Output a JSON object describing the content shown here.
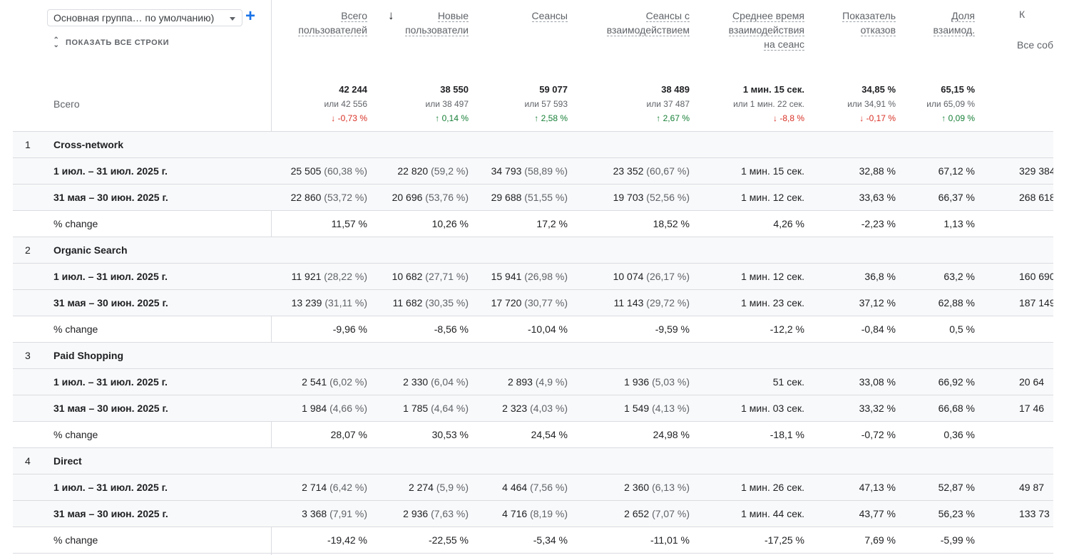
{
  "controls": {
    "dimension_select": "Основная группа… по умолчанию)",
    "add": "+",
    "show_all_rows": "ПОКАЗАТЬ ВСЕ СТРОКИ"
  },
  "columns": [
    {
      "line1": "Всего",
      "line2": "пользователей"
    },
    {
      "line1": "Новые",
      "line2": "пользователи"
    },
    {
      "line1": "Сеансы",
      "line2": ""
    },
    {
      "line1": "Сеансы с",
      "line2": "взаимодействием"
    },
    {
      "line1": "Среднее время",
      "line2": "взаимодействия",
      "line3": "на сеанс"
    },
    {
      "line1": "Показатель",
      "line2": "отказов"
    },
    {
      "line1": "Доля",
      "line2": "взаимод."
    }
  ],
  "tail_column": {
    "header": "К",
    "sub": "Все соб"
  },
  "totals": {
    "label": "Всего",
    "values": [
      {
        "main": "42 244",
        "compare": "или 42 556",
        "delta": "↓ -0,73 %",
        "dir": "down"
      },
      {
        "main": "38 550",
        "compare": "или 38 497",
        "delta": "↑ 0,14 %",
        "dir": "up"
      },
      {
        "main": "59 077",
        "compare": "или 57 593",
        "delta": "↑ 2,58 %",
        "dir": "up"
      },
      {
        "main": "38 489",
        "compare": "или 37 487",
        "delta": "↑ 2,67 %",
        "dir": "up"
      },
      {
        "main": "1 мин. 15 сек.",
        "compare": "или 1 мин. 22 сек.",
        "delta": "↓ -8,8 %",
        "dir": "down"
      },
      {
        "main": "34,85 %",
        "compare": "или 34,91 %",
        "delta": "↓ -0,17 %",
        "dir": "down"
      },
      {
        "main": "65,15 %",
        "compare": "или 65,09 %",
        "delta": "↑ 0,09 %",
        "dir": "up"
      }
    ]
  },
  "groups": [
    {
      "index": "1",
      "name": "Cross-network",
      "rows": [
        {
          "label": "1 июл. – 31 июл. 2025 г.",
          "cells": [
            [
              "25 505",
              "(60,38 %)"
            ],
            [
              "22 820",
              "(59,2 %)"
            ],
            [
              "34 793",
              "(58,89 %)"
            ],
            [
              "23 352",
              "(60,67 %)"
            ],
            [
              "1 мин. 15 сек.",
              ""
            ],
            [
              "32,88 %",
              ""
            ],
            [
              "67,12 %",
              ""
            ]
          ],
          "tail": "329 384"
        },
        {
          "label": "31 мая – 30 июн. 2025 г.",
          "cells": [
            [
              "22 860",
              "(53,72 %)"
            ],
            [
              "20 696",
              "(53,76 %)"
            ],
            [
              "29 688",
              "(51,55 %)"
            ],
            [
              "19 703",
              "(52,56 %)"
            ],
            [
              "1 мин. 12 сек.",
              ""
            ],
            [
              "33,63 %",
              ""
            ],
            [
              "66,37 %",
              ""
            ]
          ],
          "tail": "268 618"
        },
        {
          "label": "% change",
          "cells": [
            [
              "11,57 %",
              ""
            ],
            [
              "10,26 %",
              ""
            ],
            [
              "17,2 %",
              ""
            ],
            [
              "18,52 %",
              ""
            ],
            [
              "4,26 %",
              ""
            ],
            [
              "-2,23 %",
              ""
            ],
            [
              "1,13 %",
              ""
            ]
          ],
          "tail": ""
        }
      ]
    },
    {
      "index": "2",
      "name": "Organic Search",
      "rows": [
        {
          "label": "1 июл. – 31 июл. 2025 г.",
          "cells": [
            [
              "11 921",
              "(28,22 %)"
            ],
            [
              "10 682",
              "(27,71 %)"
            ],
            [
              "15 941",
              "(26,98 %)"
            ],
            [
              "10 074",
              "(26,17 %)"
            ],
            [
              "1 мин. 12 сек.",
              ""
            ],
            [
              "36,8 %",
              ""
            ],
            [
              "63,2 %",
              ""
            ]
          ],
          "tail": "160 690"
        },
        {
          "label": "31 мая – 30 июн. 2025 г.",
          "cells": [
            [
              "13 239",
              "(31,11 %)"
            ],
            [
              "11 682",
              "(30,35 %)"
            ],
            [
              "17 720",
              "(30,77 %)"
            ],
            [
              "11 143",
              "(29,72 %)"
            ],
            [
              "1 мин. 23 сек.",
              ""
            ],
            [
              "37,12 %",
              ""
            ],
            [
              "62,88 %",
              ""
            ]
          ],
          "tail": "187 149"
        },
        {
          "label": "% change",
          "cells": [
            [
              "-9,96 %",
              ""
            ],
            [
              "-8,56 %",
              ""
            ],
            [
              "-10,04 %",
              ""
            ],
            [
              "-9,59 %",
              ""
            ],
            [
              "-12,2 %",
              ""
            ],
            [
              "-0,84 %",
              ""
            ],
            [
              "0,5 %",
              ""
            ]
          ],
          "tail": ""
        }
      ]
    },
    {
      "index": "3",
      "name": "Paid Shopping",
      "rows": [
        {
          "label": "1 июл. – 31 июл. 2025 г.",
          "cells": [
            [
              "2 541",
              "(6,02 %)"
            ],
            [
              "2 330",
              "(6,04 %)"
            ],
            [
              "2 893",
              "(4,9 %)"
            ],
            [
              "1 936",
              "(5,03 %)"
            ],
            [
              "51 сек.",
              ""
            ],
            [
              "33,08 %",
              ""
            ],
            [
              "66,92 %",
              ""
            ]
          ],
          "tail": "20 64"
        },
        {
          "label": "31 мая – 30 июн. 2025 г.",
          "cells": [
            [
              "1 984",
              "(4,66 %)"
            ],
            [
              "1 785",
              "(4,64 %)"
            ],
            [
              "2 323",
              "(4,03 %)"
            ],
            [
              "1 549",
              "(4,13 %)"
            ],
            [
              "1 мин. 03 сек.",
              ""
            ],
            [
              "33,32 %",
              ""
            ],
            [
              "66,68 %",
              ""
            ]
          ],
          "tail": "17 46"
        },
        {
          "label": "% change",
          "cells": [
            [
              "28,07 %",
              ""
            ],
            [
              "30,53 %",
              ""
            ],
            [
              "24,54 %",
              ""
            ],
            [
              "24,98 %",
              ""
            ],
            [
              "-18,1 %",
              ""
            ],
            [
              "-0,72 %",
              ""
            ],
            [
              "0,36 %",
              ""
            ]
          ],
          "tail": ""
        }
      ]
    },
    {
      "index": "4",
      "name": "Direct",
      "rows": [
        {
          "label": "1 июл. – 31 июл. 2025 г.",
          "cells": [
            [
              "2 714",
              "(6,42 %)"
            ],
            [
              "2 274",
              "(5,9 %)"
            ],
            [
              "4 464",
              "(7,56 %)"
            ],
            [
              "2 360",
              "(6,13 %)"
            ],
            [
              "1 мин. 26 сек.",
              ""
            ],
            [
              "47,13 %",
              ""
            ],
            [
              "52,87 %",
              ""
            ]
          ],
          "tail": "49 87"
        },
        {
          "label": "31 мая – 30 июн. 2025 г.",
          "cells": [
            [
              "3 368",
              "(7,91 %)"
            ],
            [
              "2 936",
              "(7,63 %)"
            ],
            [
              "4 716",
              "(8,19 %)"
            ],
            [
              "2 652",
              "(7,07 %)"
            ],
            [
              "1 мин. 44 сек.",
              ""
            ],
            [
              "43,77 %",
              ""
            ],
            [
              "56,23 %",
              ""
            ]
          ],
          "tail": "133 73"
        },
        {
          "label": "% change",
          "cells": [
            [
              "-19,42 %",
              ""
            ],
            [
              "-22,55 %",
              ""
            ],
            [
              "-5,34 %",
              ""
            ],
            [
              "-11,01 %",
              ""
            ],
            [
              "-17,25 %",
              ""
            ],
            [
              "7,69 %",
              ""
            ],
            [
              "-5,99 %",
              ""
            ]
          ],
          "tail": ""
        }
      ]
    }
  ]
}
